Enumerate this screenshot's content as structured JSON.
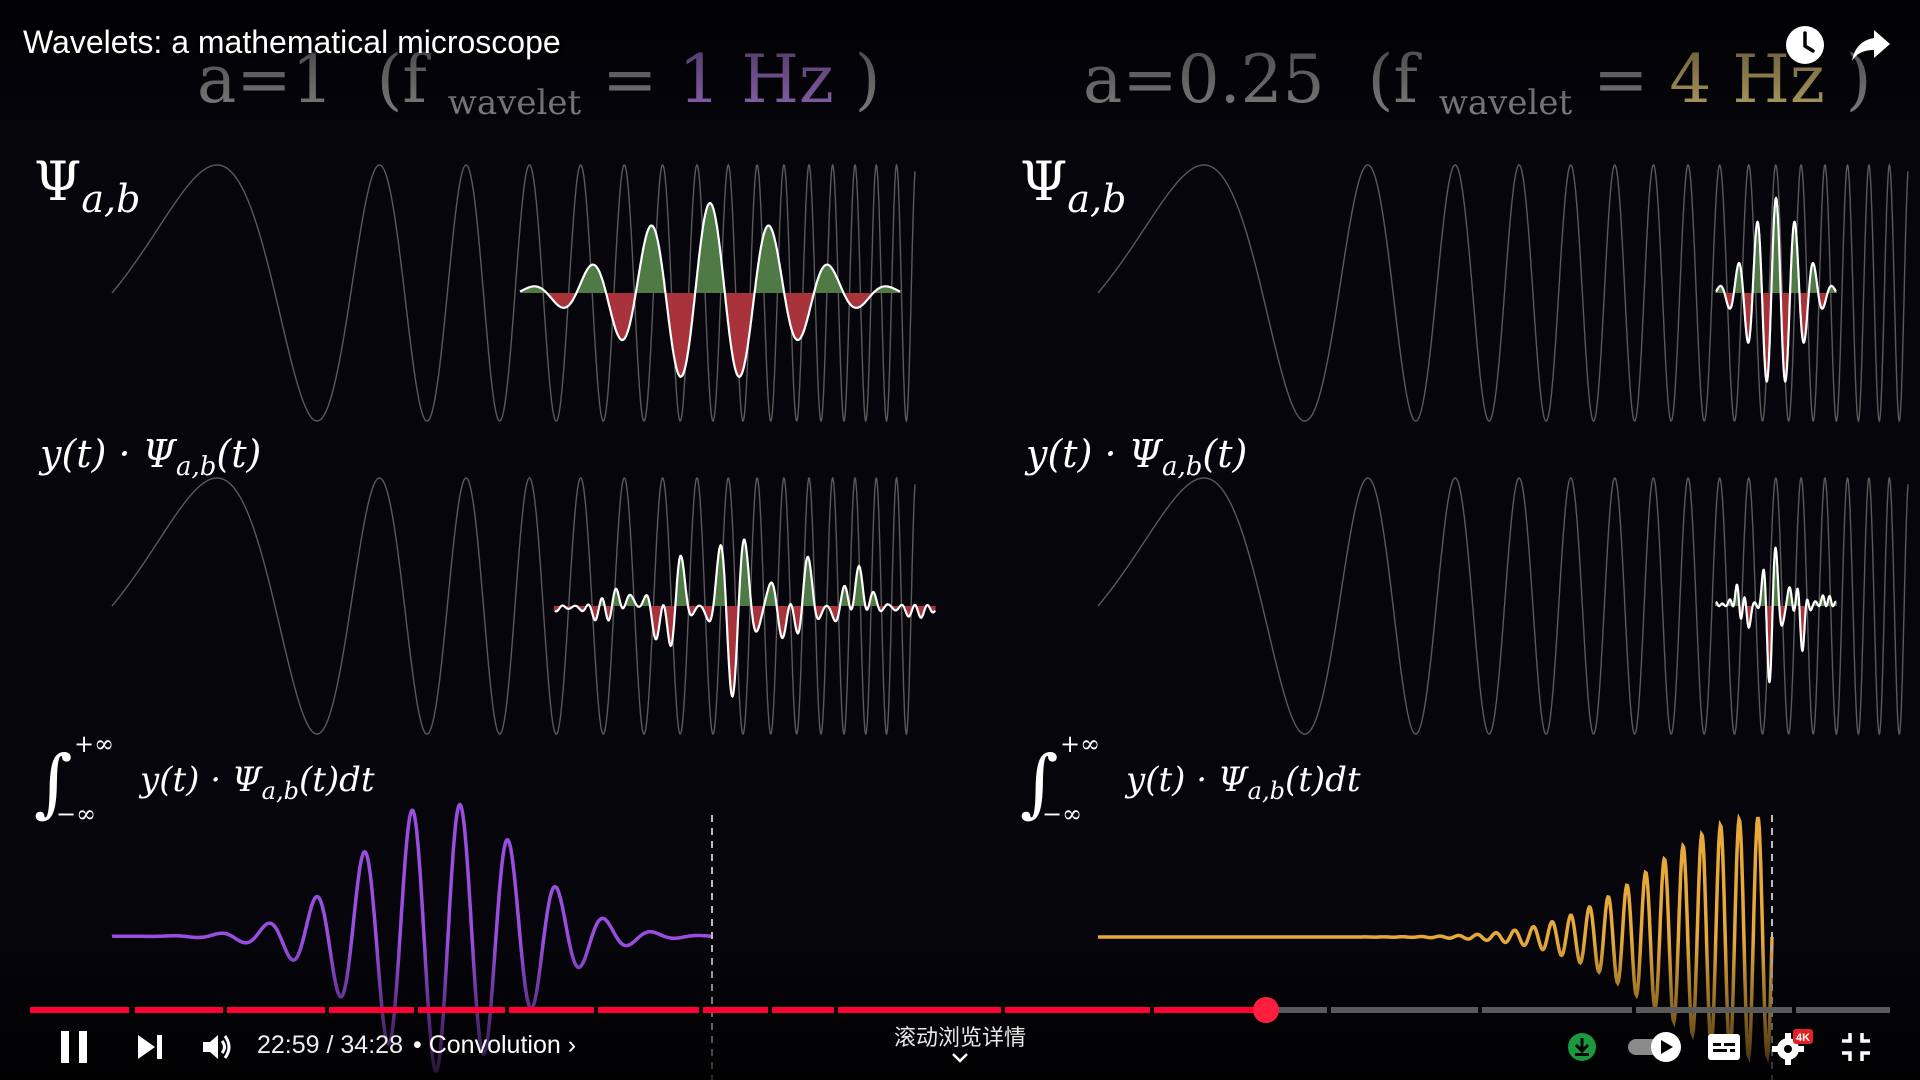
{
  "video": {
    "title": "Wavelets: a mathematical microscope"
  },
  "frame": {
    "left": {
      "heading_a": "a=1",
      "heading_open": "(f",
      "heading_sub": "wavelet",
      "heading_eq": "=",
      "heading_freq": "1 Hz",
      "heading_close": ")",
      "accent": "#9b6fc4",
      "result_color": "#9a4ee0"
    },
    "right": {
      "heading_a": "a=0.25",
      "heading_open": "(f",
      "heading_sub": "wavelet",
      "heading_eq": "=",
      "heading_freq": "4 Hz",
      "heading_close": ")",
      "accent": "#c9b26e",
      "result_color": "#e6a93a"
    },
    "labels": {
      "psi": "Ψ",
      "psi_sub": "a,b",
      "product": "y(t) · Ψ",
      "product_sub": "a,b",
      "product_tail": "(t)",
      "integral_upper": "+∞",
      "integral_lower": "−∞",
      "integral_body": "y(t) · Ψ",
      "integral_sub": "a,b",
      "integral_tail": "(t)dt"
    },
    "colors": {
      "positive_fill": "#4f7a45",
      "negative_fill": "#a8333b",
      "chirp": "#5a5a5a"
    }
  },
  "player": {
    "current_time": "22:59",
    "separator": " / ",
    "duration": "34:28",
    "chapter_prefix": "•",
    "chapter": "Convolution",
    "chapter_arrow": "›",
    "scroll_details": "滚动浏览详情",
    "played_fraction": 0.664,
    "quality_badge": "4K",
    "autoplay_on": true,
    "accent": "#ff0033"
  },
  "icons": {
    "watch_later": "clock-icon",
    "share": "share-arrow-icon",
    "pause": "pause-icon",
    "next": "skip-next-icon",
    "volume": "volume-icon",
    "download": "download-icon",
    "autoplay": "autoplay-toggle-icon",
    "captions": "subtitles-icon",
    "settings": "gear-icon",
    "exit_fullscreen": "exit-fullscreen-icon",
    "details_chevron": "chevron-down-icon"
  }
}
